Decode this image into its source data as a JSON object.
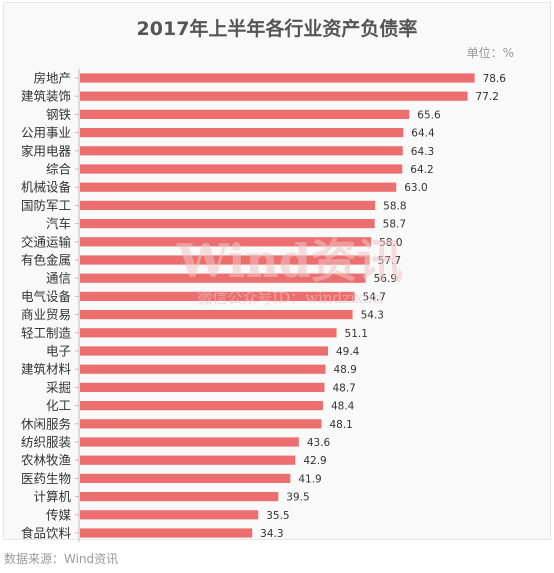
{
  "title": "2017年上半年各行业资产负债率",
  "unit_label": "单位：%",
  "source_note": "数据来源：Wind资讯",
  "watermark": {
    "brand": "Wind资讯",
    "subtitle": "微信公众号ID：windzixun"
  },
  "colors": {
    "bar": "#ec6e6e",
    "axis": "#bdbdbd",
    "text": "#333333",
    "title": "#555555",
    "muted": "#9a9a9a",
    "watermark": "#f1c4c4"
  },
  "chart_data": {
    "type": "bar",
    "orientation": "horizontal",
    "title": "2017年上半年各行业资产负债率",
    "xlabel": "",
    "ylabel": "",
    "unit": "%",
    "xlim": [
      0,
      85
    ],
    "grid": false,
    "categories": [
      "房地产",
      "建筑装饰",
      "钢铁",
      "公用事业",
      "家用电器",
      "综合",
      "机械设备",
      "国防军工",
      "汽车",
      "交通运输",
      "有色金属",
      "通信",
      "电气设备",
      "商业贸易",
      "轻工制造",
      "电子",
      "建筑材料",
      "采掘",
      "化工",
      "休闲服务",
      "纺织服装",
      "农林牧渔",
      "医药生物",
      "计算机",
      "传媒",
      "食品饮料"
    ],
    "values": [
      78.6,
      77.2,
      65.6,
      64.4,
      64.3,
      64.2,
      63.0,
      58.8,
      58.7,
      58.0,
      57.7,
      56.9,
      54.7,
      54.3,
      51.1,
      49.4,
      48.9,
      48.7,
      48.4,
      48.1,
      43.6,
      42.9,
      41.9,
      39.5,
      35.5,
      34.3
    ],
    "value_labels": [
      "78.6",
      "77.2",
      "65.6",
      "64.4",
      "64.3",
      "64.2",
      "63.0",
      "58.8",
      "58.7",
      "58.0",
      "57.7",
      "56.9",
      "54.7",
      "54.3",
      "51.1",
      "49.4",
      "48.9",
      "48.7",
      "48.4",
      "48.1",
      "43.6",
      "42.9",
      "41.9",
      "39.5",
      "35.5",
      "34.3"
    ]
  }
}
